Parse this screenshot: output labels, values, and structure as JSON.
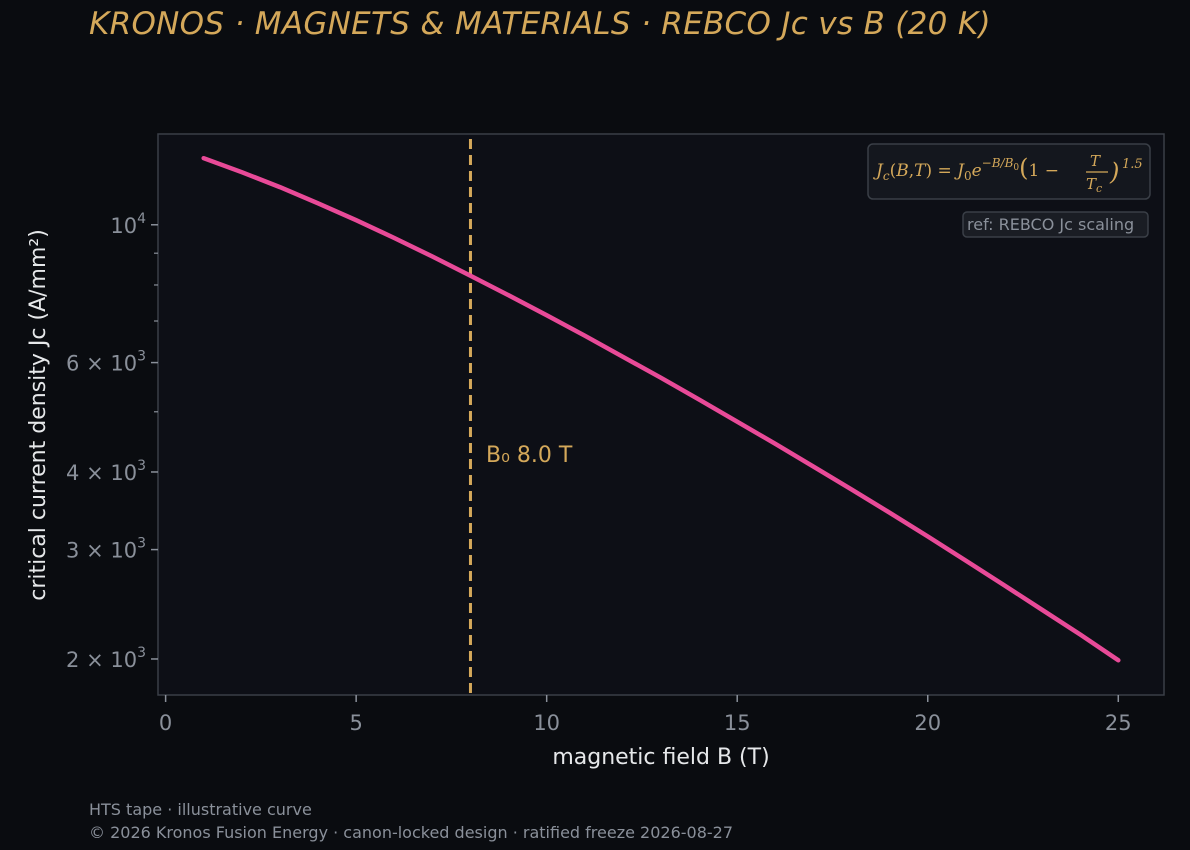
{
  "title": "KRONOS · MAGNETS & MATERIALS  ·  REBCO Jc vs B (20 K)",
  "footer": {
    "line1": "HTS tape · illustrative curve",
    "line2": "© 2026 Kronos Fusion Energy · canon-locked design · ratified freeze 2026-08-27"
  },
  "colors": {
    "background": "#0a0c10",
    "plot_bg": "#0d0f16",
    "frame": "#3a3f47",
    "curve": "#e84a98",
    "accent": "#d4a85a",
    "muted_text": "#8a909a",
    "label_text": "#e6e8ea"
  },
  "chart_data": {
    "type": "line",
    "xlabel": "magnetic field B (T)",
    "ylabel": "critical current density Jc (A/mm²)",
    "xlim": [
      -0.2,
      26.2
    ],
    "ylim": [
      1750,
      14000
    ],
    "yscale": "log",
    "grid": false,
    "x_ticks": [
      0,
      5,
      10,
      15,
      20,
      25
    ],
    "y_major_ticks": [
      {
        "value": 2000,
        "mantissa": "2",
        "exp": "3"
      },
      {
        "value": 3000,
        "mantissa": "3",
        "exp": "3"
      },
      {
        "value": 4000,
        "mantissa": "4",
        "exp": "3"
      },
      {
        "value": 6000,
        "mantissa": "6",
        "exp": "3"
      },
      {
        "value": 10000,
        "mantissa": "",
        "exp": "4"
      }
    ],
    "y_minor_ticks": [
      5000,
      7000,
      8000,
      9000
    ],
    "series": [
      {
        "x": [
          1,
          2,
          3,
          4,
          5,
          6,
          7,
          8,
          9,
          10,
          11,
          12,
          13,
          14,
          15,
          16,
          17,
          18,
          19,
          20,
          21,
          22,
          23,
          24,
          25
        ],
        "y": [
          12800,
          12150,
          11500,
          10830,
          10170,
          9520,
          8890,
          8280,
          7700,
          7150,
          6630,
          6130,
          5670,
          5230,
          4820,
          4440,
          4080,
          3750,
          3440,
          3150,
          2880,
          2630,
          2400,
          2190,
          1990
        ]
      }
    ],
    "annotations": {
      "vline_x": 8.0,
      "vline_label": "B₀ 8.0 T",
      "formula_label": "Jc(B,T)=J0e^(−B/B0)(1−T/Tc)^1.5",
      "ref_label": "ref: REBCO Jc scaling"
    }
  }
}
